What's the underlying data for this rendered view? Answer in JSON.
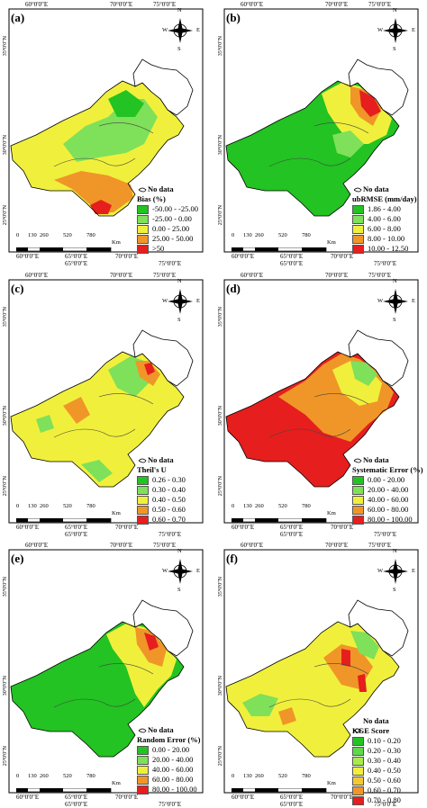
{
  "grid": {
    "top_labels": [
      "60°0'0\"E",
      "70°0'0\"E",
      "75°0'0\"E"
    ],
    "bottom_labels_1": [
      "60°0'0\"E",
      "65°0'0\"E",
      "70°0'0\"E"
    ],
    "bottom_labels_2": [
      "65°0'0\"E",
      "75°0'0\"E"
    ],
    "left_labels": [
      "35°0'0\"N",
      "30°0'0\"N",
      "25°0'0\"N"
    ]
  },
  "scale_bar": {
    "ticks": [
      "0",
      "130",
      "260",
      "520",
      "780"
    ],
    "unit": "Km"
  },
  "compass": {
    "n": "N",
    "s": "S",
    "e": "E",
    "w": "W"
  },
  "no_data_label": "No data",
  "colors": {
    "dark_green": "#22c322",
    "green": "#7fe05a",
    "yellow": "#f0f03c",
    "orange": "#f09628",
    "red": "#e61e1e",
    "no_data": "#ffffff"
  },
  "panels": [
    {
      "label": "(a)",
      "title": "Bias (%)",
      "classes": [
        "-50.00 - -25.00",
        "-25.00 - 0.00",
        "0.00 - 25.00",
        "25.00 - 50.00",
        ">50"
      ]
    },
    {
      "label": "(b)",
      "title": "ubRMSE (mm/day)",
      "classes": [
        "1.86 - 4.00",
        "4.00 - 6.00",
        "6.00 - 8.00",
        "8.00 - 10.00",
        "10.00 - 12.50"
      ]
    },
    {
      "label": "(c)",
      "title": "Theil's U",
      "classes": [
        "0.26 - 0.30",
        "0.30 - 0.40",
        "0.40 - 0.50",
        "0.50 - 0.60",
        "0.60 - 0.70"
      ]
    },
    {
      "label": "(d)",
      "title": "Systematic Error (%)",
      "classes": [
        "0.00 - 20.00",
        "20.00 - 40.00",
        "40.00 - 60.00",
        "60.00 - 80.00",
        "80.00 - 100.00"
      ]
    },
    {
      "label": "(e)",
      "title": "Random Error (%)",
      "classes": [
        "0.00 - 20.00",
        "20.00 - 40.00",
        "40.00 - 60.00",
        "60.00 - 80.00",
        "80.00 - 100.00"
      ]
    },
    {
      "label": "(f)",
      "title": "KGE Score",
      "classes": [
        "0.10 - 0.20",
        "0.20 - 0.30",
        "0.30 - 0.40",
        "0.40 - 0.50",
        "0.50 - 0.60",
        "0.60 - 0.70",
        "0.70 - 0.80"
      ]
    }
  ]
}
